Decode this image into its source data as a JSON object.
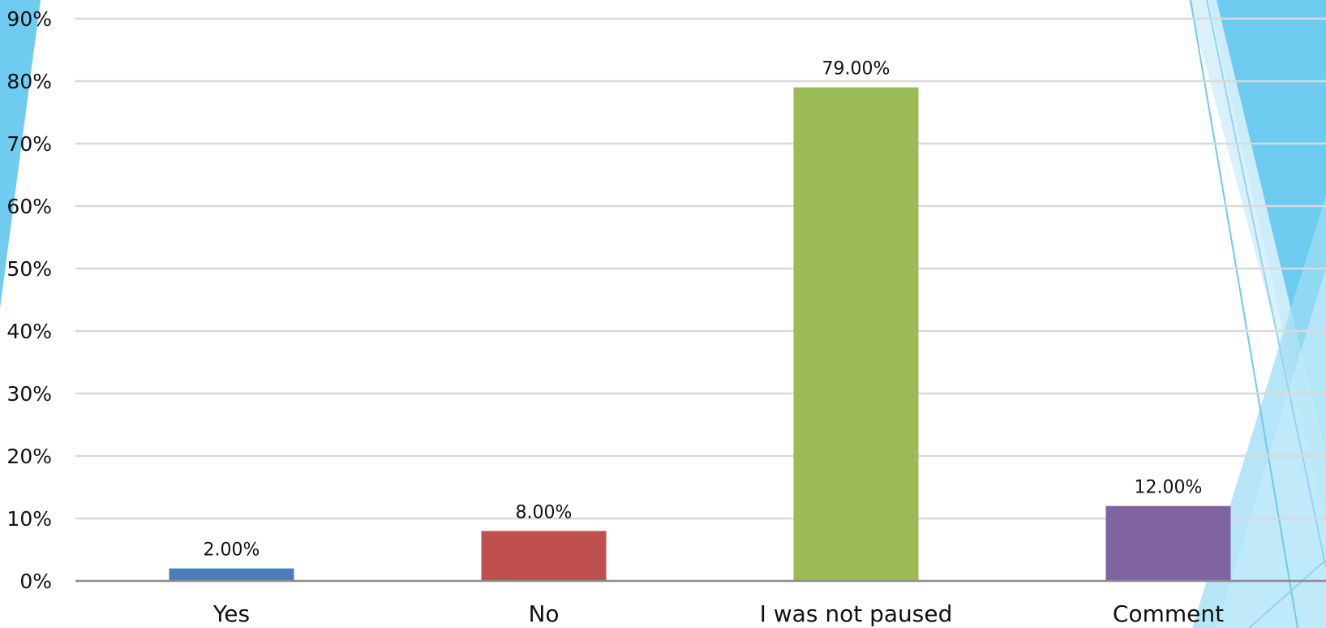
{
  "chart_data": {
    "type": "bar",
    "categories": [
      "Yes",
      "No",
      "I was not paused",
      "Comment"
    ],
    "values": [
      2.0,
      8.0,
      79.0,
      12.0
    ],
    "data_labels": [
      "2.00%",
      "8.00%",
      "79.00%",
      "12.00%"
    ],
    "bar_colors": [
      "#4a7ebb",
      "#c0504d",
      "#9bbb59",
      "#8064a2"
    ],
    "yticks": [
      "0%",
      "10%",
      "20%",
      "30%",
      "40%",
      "50%",
      "60%",
      "70%",
      "80%",
      "90%"
    ],
    "ylim": [
      0,
      90
    ],
    "grid": true,
    "legend": "none"
  },
  "theme": {
    "accent_light": "#bfe6f5",
    "accent_mid": "#7fcfee",
    "accent_dark": "#4fb3e0"
  }
}
